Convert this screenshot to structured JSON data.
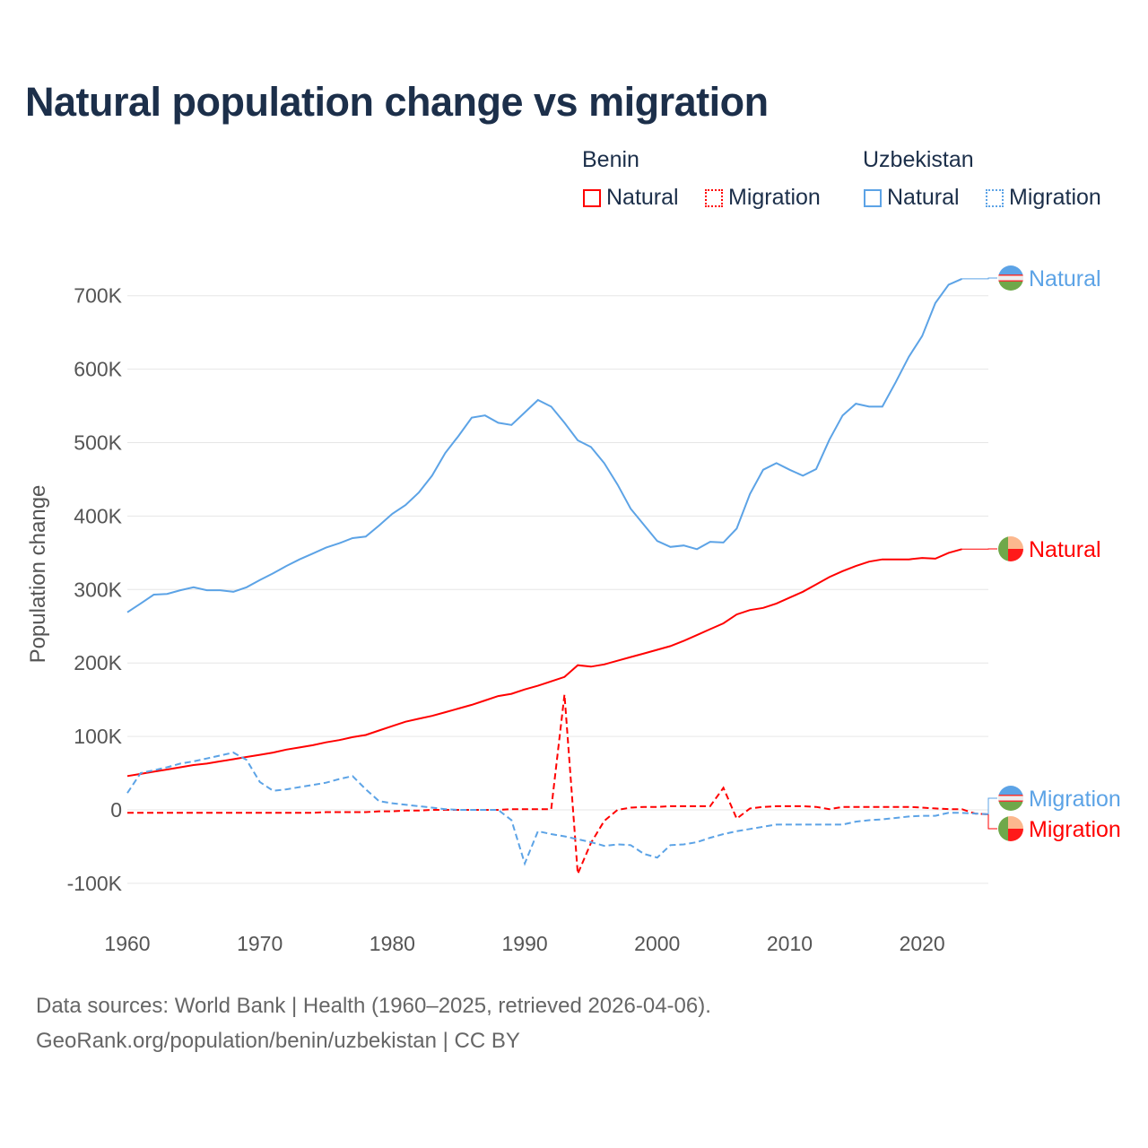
{
  "chart_data": {
    "type": "line",
    "title": "Natural population change vs migration",
    "ylabel": "Population change",
    "xlabel": "",
    "xlim": [
      1960,
      2025
    ],
    "ylim": [
      -100000,
      700000
    ],
    "x_ticks": [
      1960,
      1970,
      1980,
      1990,
      2000,
      2010,
      2020
    ],
    "x_tick_labels": [
      "1960",
      "1970",
      "1980",
      "1990",
      "2000",
      "2010",
      "2020"
    ],
    "y_ticks": [
      -100000,
      0,
      100000,
      200000,
      300000,
      400000,
      500000,
      600000,
      700000
    ],
    "y_tick_labels": [
      "-100K",
      "0",
      "100K",
      "200K",
      "300K",
      "400K",
      "500K",
      "600K",
      "700K"
    ],
    "grid": true,
    "legend": {
      "placement": "top-right",
      "groups": [
        {
          "name": "Benin",
          "items": [
            "Natural",
            "Migration"
          ]
        },
        {
          "name": "Uzbekistan",
          "items": [
            "Natural",
            "Migration"
          ]
        }
      ]
    },
    "series": [
      {
        "name": "Natural",
        "country": "Benin",
        "color": "#ff0000",
        "dash": "solid",
        "start_year": 1960,
        "values_k": [
          46,
          49,
          52,
          55,
          58,
          61,
          63,
          66,
          69,
          72,
          75,
          78,
          82,
          85,
          88,
          92,
          95,
          99,
          102,
          108,
          114,
          120,
          124,
          128,
          133,
          138,
          143,
          149,
          155,
          158,
          164,
          169,
          175,
          181,
          197,
          195,
          198,
          203,
          208,
          213,
          218,
          223,
          230,
          238,
          246,
          254,
          266,
          272,
          275,
          281,
          289,
          297,
          307,
          317,
          325,
          332,
          338,
          341,
          341,
          341,
          343,
          342,
          350,
          355
        ]
      },
      {
        "name": "Migration",
        "country": "Benin",
        "color": "#ff0000",
        "dash": "dashed",
        "start_year": 1960,
        "values_k": [
          -4,
          -4,
          -4,
          -4,
          -4,
          -4,
          -4,
          -4,
          -4,
          -4,
          -4,
          -4,
          -4,
          -4,
          -4,
          -3,
          -3,
          -3,
          -3,
          -2,
          -2,
          -1,
          -1,
          0,
          0,
          0,
          0,
          0,
          0,
          1,
          1,
          1,
          1,
          157,
          -87,
          -45,
          -15,
          0,
          3,
          4,
          4,
          5,
          5,
          5,
          5,
          30,
          -12,
          2,
          4,
          5,
          5,
          5,
          4,
          1,
          4,
          4,
          4,
          4,
          4,
          4,
          3,
          2,
          1,
          1,
          -5,
          -6
        ]
      },
      {
        "name": "Natural",
        "country": "Uzbekistan",
        "color": "#5ca3e6",
        "dash": "solid",
        "start_year": 1960,
        "values_k": [
          269,
          281,
          293,
          294,
          299,
          303,
          299,
          299,
          297,
          303,
          313,
          322,
          332,
          341,
          349,
          357,
          363,
          370,
          372,
          387,
          403,
          415,
          432,
          455,
          486,
          509,
          534,
          537,
          527,
          524,
          541,
          558,
          549,
          527,
          503,
          494,
          472,
          443,
          410,
          388,
          366,
          358,
          360,
          355,
          365,
          364,
          383,
          430,
          463,
          472,
          463,
          455,
          464,
          504,
          537,
          553,
          549,
          549,
          582,
          617,
          645,
          690,
          715,
          723
        ]
      },
      {
        "name": "Migration",
        "country": "Uzbekistan",
        "color": "#5ca3e6",
        "dash": "dashed",
        "start_year": 1960,
        "values_k": [
          23,
          50,
          54,
          58,
          63,
          66,
          70,
          74,
          78,
          68,
          38,
          26,
          28,
          31,
          34,
          37,
          42,
          46,
          28,
          12,
          9,
          7,
          5,
          3,
          1,
          0,
          0,
          0,
          0,
          -14,
          -73,
          -29,
          -33,
          -36,
          -40,
          -44,
          -49,
          -47,
          -48,
          -60,
          -65,
          -48,
          -47,
          -44,
          -38,
          -33,
          -29,
          -26,
          -23,
          -20,
          -20,
          -20,
          -20,
          -20,
          -20,
          -16,
          -14,
          -13,
          -11,
          -9,
          -8,
          -8,
          -4,
          -4,
          -5,
          -6
        ]
      }
    ],
    "end_labels": {
      "uz_natural": "Natural",
      "bj_natural": "Natural",
      "uz_migration": "Migration",
      "bj_migration": "Migration"
    }
  },
  "legend": {
    "benin": "Benin",
    "uzbekistan": "Uzbekistan",
    "natural": "Natural",
    "migration": "Migration"
  },
  "colors": {
    "benin": "#ff0000",
    "uzbekistan": "#5ca3e6",
    "title": "#1c2f4a"
  },
  "source": {
    "line1": "Data sources: World Bank | Health (1960–2025, retrieved 2026-04-06).",
    "line2": "GeoRank.org/population/benin/uzbekistan | CC BY"
  }
}
